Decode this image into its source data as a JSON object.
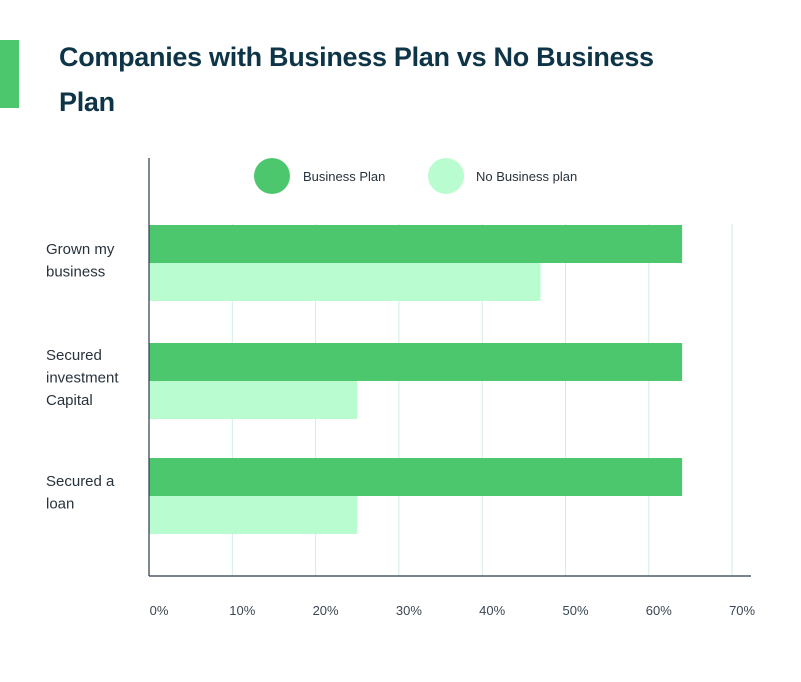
{
  "title": "Companies with Business Plan vs No Business Plan",
  "colors": {
    "accent": "#4cc76e",
    "title": "#0e3547",
    "grid": "#cfeee0",
    "axis": "#2a3a4a"
  },
  "chart_data": {
    "type": "bar",
    "orientation": "horizontal",
    "title": "Companies with Business Plan vs No Business Plan",
    "xlabel": "",
    "ylabel": "",
    "xlim": [
      0,
      70
    ],
    "x_ticks": [
      "0%",
      "10%",
      "20%",
      "30%",
      "40%",
      "50%",
      "60%",
      "70%"
    ],
    "tick_values": [
      0,
      10,
      20,
      30,
      40,
      50,
      60,
      70
    ],
    "grid": true,
    "legend_position": "top",
    "categories": [
      [
        "Grown my",
        "business"
      ],
      [
        "Secured",
        "investment",
        "Capital"
      ],
      [
        "Secured a",
        "loan"
      ]
    ],
    "series": [
      {
        "name": "Business Plan",
        "color": "#4cc76e",
        "values": [
          64,
          64,
          64
        ]
      },
      {
        "name": "No Business plan",
        "color": "#b8fcd0",
        "values": [
          47,
          25,
          25
        ]
      }
    ]
  }
}
